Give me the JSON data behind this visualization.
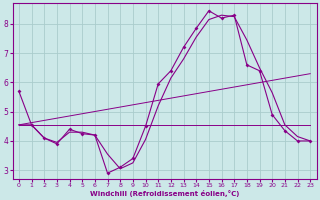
{
  "xlabel": "Windchill (Refroidissement éolien,°C)",
  "background_color": "#cce8e8",
  "grid_color": "#aacccc",
  "line_color": "#880088",
  "ylim": [
    2.7,
    8.7
  ],
  "xlim": [
    -0.5,
    23.5
  ],
  "yticks": [
    3,
    4,
    5,
    6,
    7,
    8
  ],
  "xticks": [
    0,
    1,
    2,
    3,
    4,
    5,
    6,
    7,
    8,
    9,
    10,
    11,
    12,
    13,
    14,
    15,
    16,
    17,
    18,
    19,
    20,
    21,
    22,
    23
  ],
  "line1_x": [
    0,
    1,
    2,
    3,
    4,
    5,
    6,
    7,
    8,
    9,
    10,
    11,
    12,
    13,
    14,
    15,
    16,
    17,
    18,
    19,
    20,
    21,
    22,
    23
  ],
  "line1_y": [
    5.7,
    4.55,
    4.1,
    3.9,
    4.4,
    4.25,
    4.2,
    2.9,
    3.1,
    3.4,
    4.5,
    5.95,
    6.4,
    7.2,
    7.85,
    8.45,
    8.2,
    8.3,
    6.6,
    6.4,
    4.9,
    4.35,
    4.0,
    4.0
  ],
  "line2_x": [
    0,
    23
  ],
  "line2_y": [
    4.55,
    4.55
  ],
  "line3_x": [
    0,
    23
  ],
  "line3_y": [
    4.55,
    6.3
  ],
  "line4_x": [
    0,
    1,
    2,
    3,
    4,
    5,
    6,
    7,
    8,
    9,
    10,
    11,
    12,
    13,
    14,
    15,
    16,
    17,
    18,
    19,
    20,
    21,
    22,
    23
  ],
  "line4_y": [
    4.55,
    4.55,
    4.1,
    3.95,
    4.3,
    4.3,
    4.2,
    3.55,
    3.05,
    3.25,
    4.05,
    5.2,
    6.15,
    6.8,
    7.55,
    8.15,
    8.3,
    8.25,
    7.45,
    6.5,
    5.65,
    4.55,
    4.15,
    4.0
  ]
}
